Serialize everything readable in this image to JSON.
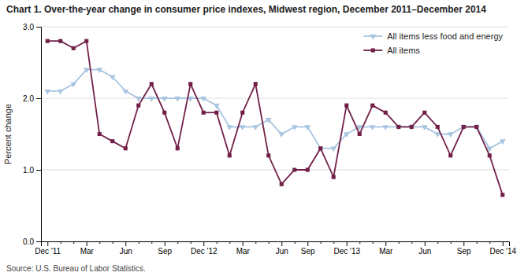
{
  "chart_data": {
    "type": "line",
    "title": "Chart 1. Over-the-year change in consumer price indexes, Midwest region, December 2011–December 2014",
    "ylabel": "Percent change",
    "annotations": [
      "Source: U.S. Bureau of Labor Statistics."
    ],
    "categories": [
      "Dec '11",
      null,
      null,
      "Mar",
      null,
      null,
      "Jun",
      null,
      null,
      "Sep",
      null,
      null,
      "Dec '12",
      null,
      null,
      "Mar",
      null,
      null,
      "Jun",
      null,
      "Sep",
      null,
      null,
      "Dec '13",
      null,
      null,
      "Mar",
      null,
      null,
      "Jun",
      null,
      null,
      "Sep",
      null,
      null,
      "Dec '14"
    ],
    "series": [
      {
        "name": "All items less food and energy",
        "color": "#a8c4e0",
        "marker": "triangle-down",
        "values": [
          2.1,
          2.1,
          2.2,
          2.4,
          2.4,
          2.3,
          2.1,
          2.0,
          2.0,
          2.0,
          2.0,
          2.0,
          2.0,
          1.9,
          1.6,
          1.6,
          1.6,
          1.7,
          1.5,
          1.6,
          1.6,
          1.3,
          1.3,
          1.5,
          1.6,
          1.6,
          1.6,
          1.6,
          1.6,
          1.6,
          1.5,
          1.5,
          1.6,
          1.6,
          1.3,
          1.4
        ]
      },
      {
        "name": "All items",
        "color": "#722048",
        "marker": "square",
        "values": [
          2.8,
          2.8,
          2.7,
          2.8,
          1.5,
          1.4,
          1.3,
          1.9,
          2.2,
          1.8,
          1.3,
          2.2,
          1.8,
          1.8,
          1.2,
          1.8,
          2.2,
          1.2,
          0.8,
          1.0,
          1.0,
          1.3,
          0.9,
          1.9,
          1.5,
          1.9,
          1.8,
          1.6,
          1.6,
          1.8,
          1.6,
          1.2,
          1.6,
          1.6,
          1.2,
          0.65
        ]
      }
    ],
    "ylim": [
      0.0,
      3.0
    ],
    "yticks": [
      {
        "value": 0,
        "label": "0.0"
      },
      {
        "value": 1,
        "label": "1.0"
      },
      {
        "value": 2,
        "label": "2.0"
      },
      {
        "value": 3,
        "label": "3.0"
      }
    ],
    "grid": true,
    "legend": "upper right"
  }
}
